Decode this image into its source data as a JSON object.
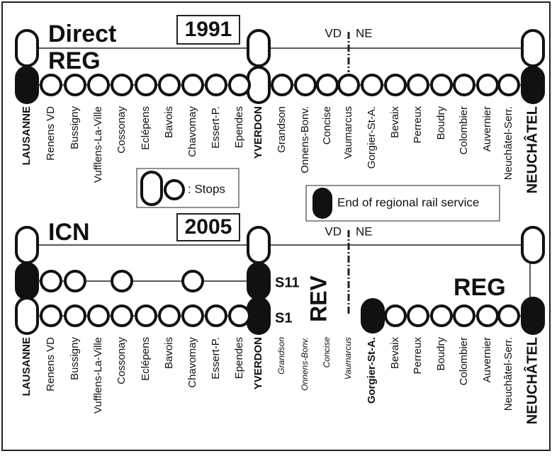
{
  "top": {
    "title1": "Direct",
    "title2": "REG",
    "year": "1991",
    "border_left": "VD",
    "border_right": "NE",
    "stations": [
      "LAUSANNE",
      "Renens VD",
      "Bussigny",
      "Vufflens-La-Ville",
      "Cossonay",
      "Eclépens",
      "Bavois",
      "Chavomay",
      "Essert-P.",
      "Ependes",
      "YVERDON",
      "Grandson",
      "Onnens-Bonv.",
      "Concise",
      "Vaumarcus",
      "Gorgier-St-A.",
      "Bevaix",
      "Perreux",
      "Boudry",
      "Colombier",
      "Auvernier",
      "Neuchâtel-Serr.",
      "NEUCHÂTEL"
    ]
  },
  "legend": {
    "stops": ": Stops",
    "end": "End of regional rail service"
  },
  "bottom": {
    "title": "ICN",
    "year": "2005",
    "border_left": "VD",
    "border_right": "NE",
    "s11": "S11",
    "s1": "S1",
    "rev": "REV",
    "reg": "REG",
    "stations": [
      "LAUSANNE",
      "Renens VD",
      "Bussigny",
      "Vufflens-La-Ville",
      "Cossonay",
      "Eclépens",
      "Bavois",
      "Chavomay",
      "Essert-P.",
      "Ependes",
      "YVERDON",
      "Grandson",
      "Onnens-Bonv.",
      "Concise",
      "Vaumarcus",
      "Gorgier-St-A.",
      "Bevaix",
      "Perreux",
      "Boudry",
      "Colombier",
      "Auvernier",
      "Neuchâtel-Serr.",
      "NEUCHÂTEL"
    ]
  }
}
